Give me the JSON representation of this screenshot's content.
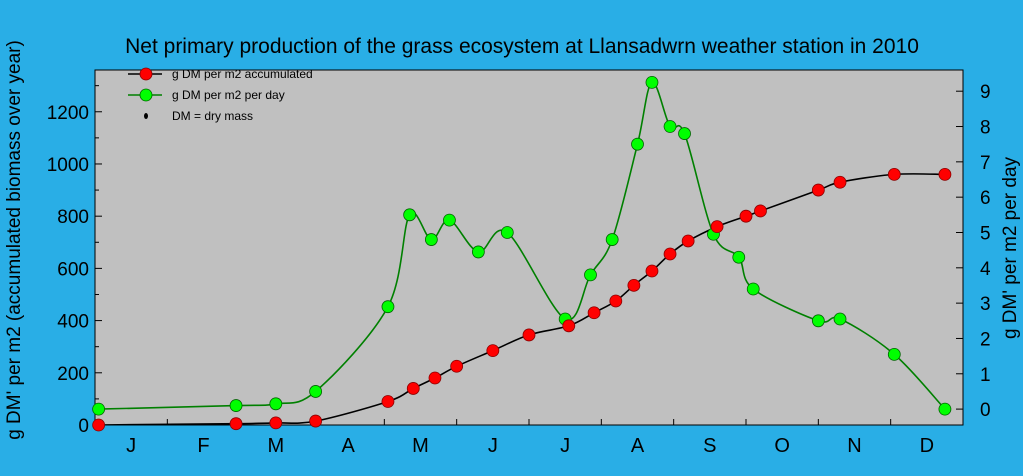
{
  "chart_data": {
    "type": "line",
    "title": "Net primary production of the grass ecosystem at Llansadwrn weather station in 2010",
    "ylabel": "g DM' per m2 (accumulated biomass over year)",
    "ylabel_right": "g DM' per m2 per day",
    "x_ticks": [
      "J",
      "F",
      "M",
      "A",
      "M",
      "J",
      "J",
      "A",
      "S",
      "O",
      "N",
      "D"
    ],
    "xlim": [
      0,
      12
    ],
    "y_ticks": [
      "0",
      "200",
      "400",
      "600",
      "800",
      "1000",
      "1200"
    ],
    "ylim": [
      0,
      1360
    ],
    "y2_ticks": [
      "0",
      "1",
      "2",
      "3",
      "4",
      "5",
      "6",
      "7",
      "8",
      "9"
    ],
    "y2lim": [
      -0.45,
      9.6
    ],
    "background": "#29aee6",
    "plot_background": "#c0c0c0",
    "legend_position": "top-left",
    "legend": [
      {
        "label": "g DM per m2 accumulated"
      },
      {
        "label": "g DM per m2 per day"
      },
      {
        "label": "DM = dry mass"
      }
    ],
    "series": [
      {
        "name": "g DM per m2 accumulated",
        "axis": "left",
        "color": "#ff0000",
        "line_color": "#000000",
        "x": [
          0.05,
          1.95,
          2.5,
          3.05,
          4.05,
          4.4,
          4.7,
          5.0,
          5.5,
          6.0,
          6.55,
          6.9,
          7.2,
          7.45,
          7.7,
          7.95,
          8.2,
          8.6,
          9.0,
          9.2,
          10.0,
          10.3,
          11.05,
          11.75
        ],
        "y": [
          0,
          5,
          8,
          15,
          90,
          140,
          180,
          225,
          285,
          345,
          380,
          430,
          475,
          535,
          590,
          655,
          705,
          760,
          800,
          820,
          900,
          930,
          960,
          960
        ]
      },
      {
        "name": "g DM per m2 per day",
        "axis": "right",
        "color": "#00ff00",
        "line_color": "#008000",
        "x": [
          0.05,
          1.95,
          2.5,
          3.05,
          4.05,
          4.35,
          4.65,
          4.9,
          5.3,
          5.7,
          6.5,
          6.85,
          7.15,
          7.5,
          7.7,
          7.95,
          8.15,
          8.55,
          8.9,
          9.1,
          10.0,
          10.3,
          11.05,
          11.75
        ],
        "y": [
          0.0,
          0.1,
          0.15,
          0.5,
          2.9,
          5.5,
          4.8,
          5.35,
          4.45,
          5.0,
          2.55,
          3.8,
          4.8,
          7.5,
          9.25,
          8.0,
          7.8,
          4.95,
          4.3,
          3.4,
          2.5,
          2.55,
          1.55,
          0.0
        ]
      }
    ]
  }
}
